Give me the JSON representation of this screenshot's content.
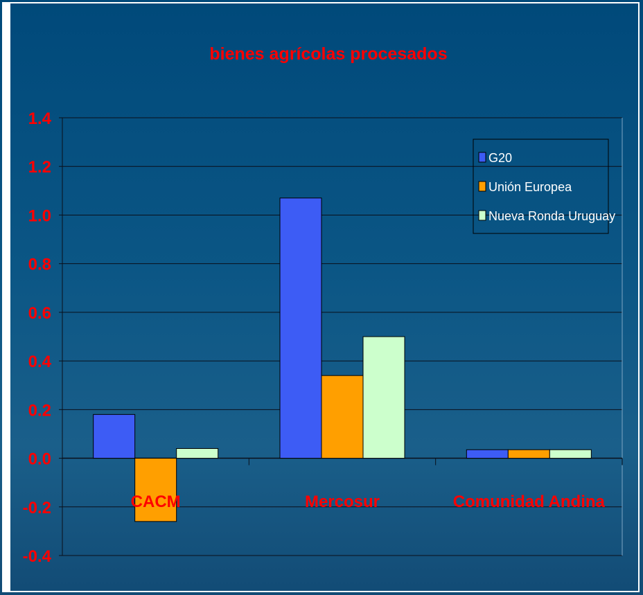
{
  "chart_data": {
    "type": "bar",
    "title": "bienes agrícolas procesados",
    "categories": [
      "CACM",
      "Mercosur",
      "Comunidad Andina"
    ],
    "series": [
      {
        "name": "G20",
        "values": [
          0.18,
          1.07,
          0.035
        ]
      },
      {
        "name": "Unión Europea",
        "values": [
          -0.26,
          0.34,
          0.035
        ]
      },
      {
        "name": "Nueva Ronda Uruguay",
        "values": [
          0.04,
          0.5,
          0.035
        ]
      }
    ],
    "ylim": [
      -0.4,
      1.4
    ],
    "yticks": [
      "-0.4",
      "-0.2",
      "0.0",
      "0.2",
      "0.4",
      "0.6",
      "0.8",
      "1.0",
      "1.2",
      "1.4"
    ],
    "grid": true,
    "legend_position": "top-right",
    "colors": {
      "series": [
        "#3d5cf5",
        "#ff9f00",
        "#ccffcc"
      ],
      "title": "#ff0000",
      "tick_labels": "#ff0000",
      "category_labels": "#ff0000",
      "gridline": "#0a0f1a",
      "legend_text": "#ffffff"
    }
  }
}
